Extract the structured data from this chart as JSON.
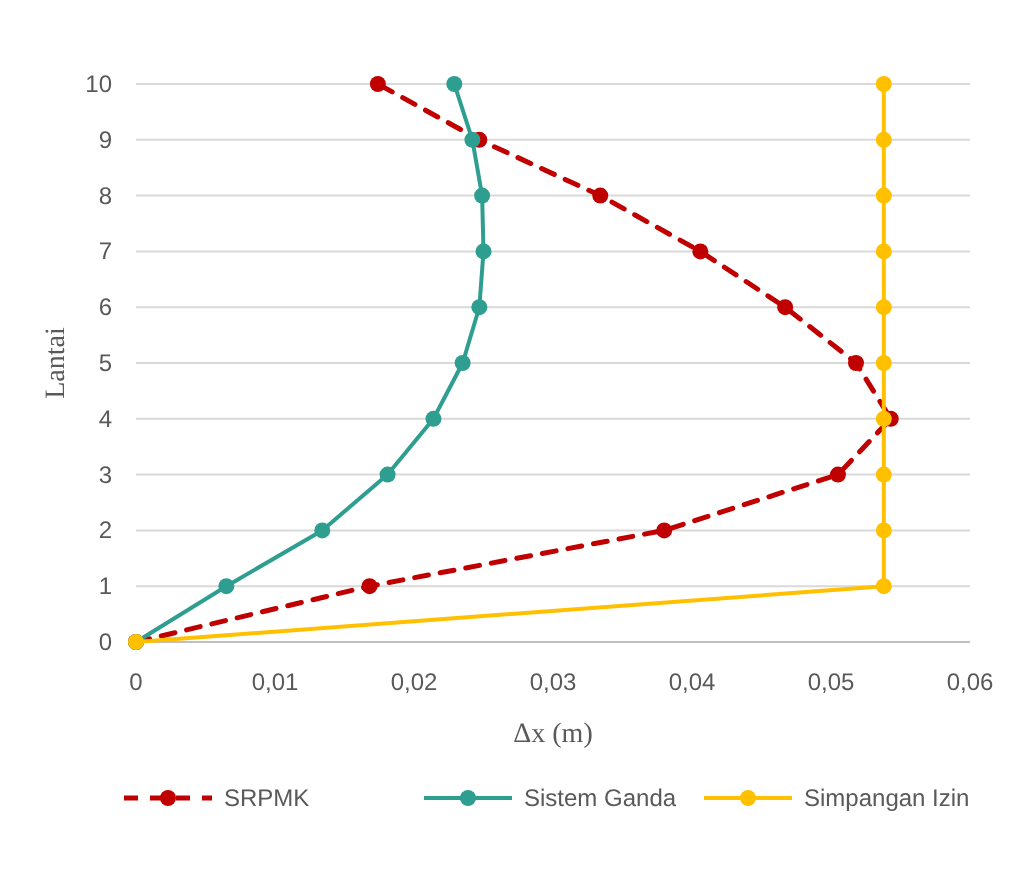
{
  "chart_data": {
    "type": "line",
    "xlabel": "Δx (m)",
    "ylabel": "Lantai",
    "xlim": [
      0,
      0.06
    ],
    "xticks": [
      0,
      {
        "value": 0.01,
        "label": "0,01"
      },
      {
        "value": 0.02,
        "label": "0,02"
      },
      {
        "value": 0.03,
        "label": "0,03"
      },
      {
        "value": 0.04,
        "label": "0,04"
      },
      {
        "value": 0.05,
        "label": "0,05"
      },
      {
        "value": 0.06,
        "label": "0,06"
      }
    ],
    "ylim": [
      0,
      10
    ],
    "yticks": [
      0,
      1,
      2,
      3,
      4,
      5,
      6,
      7,
      8,
      9,
      10
    ],
    "grid": "y",
    "legend": "bottom",
    "marker": "circle",
    "series": [
      {
        "name": "SRPMK",
        "color": "#c00000",
        "line_style": "dashed",
        "x": [
          0,
          0.0168,
          0.038,
          0.0505,
          0.0543,
          0.0518,
          0.0467,
          0.0406,
          0.0334,
          0.0247,
          0.0174
        ],
        "values": [
          0,
          1,
          2,
          3,
          4,
          5,
          6,
          7,
          8,
          9,
          10
        ]
      },
      {
        "name": "Sistem Ganda",
        "color": "#2e9e90",
        "line_style": "solid",
        "x": [
          0,
          0.0065,
          0.0134,
          0.0181,
          0.0214,
          0.0235,
          0.0247,
          0.025,
          0.0249,
          0.0242,
          0.0229
        ],
        "values": [
          0,
          1,
          2,
          3,
          4,
          5,
          6,
          7,
          8,
          9,
          10
        ]
      },
      {
        "name": "Simpangan Izin",
        "color": "#ffc000",
        "line_style": "solid",
        "x": [
          0,
          0.0538,
          0.0538,
          0.0538,
          0.0538,
          0.0538,
          0.0538,
          0.0538,
          0.0538,
          0.0538,
          0.0538
        ],
        "values": [
          0,
          1,
          2,
          3,
          4,
          5,
          6,
          7,
          8,
          9,
          10
        ]
      }
    ]
  }
}
